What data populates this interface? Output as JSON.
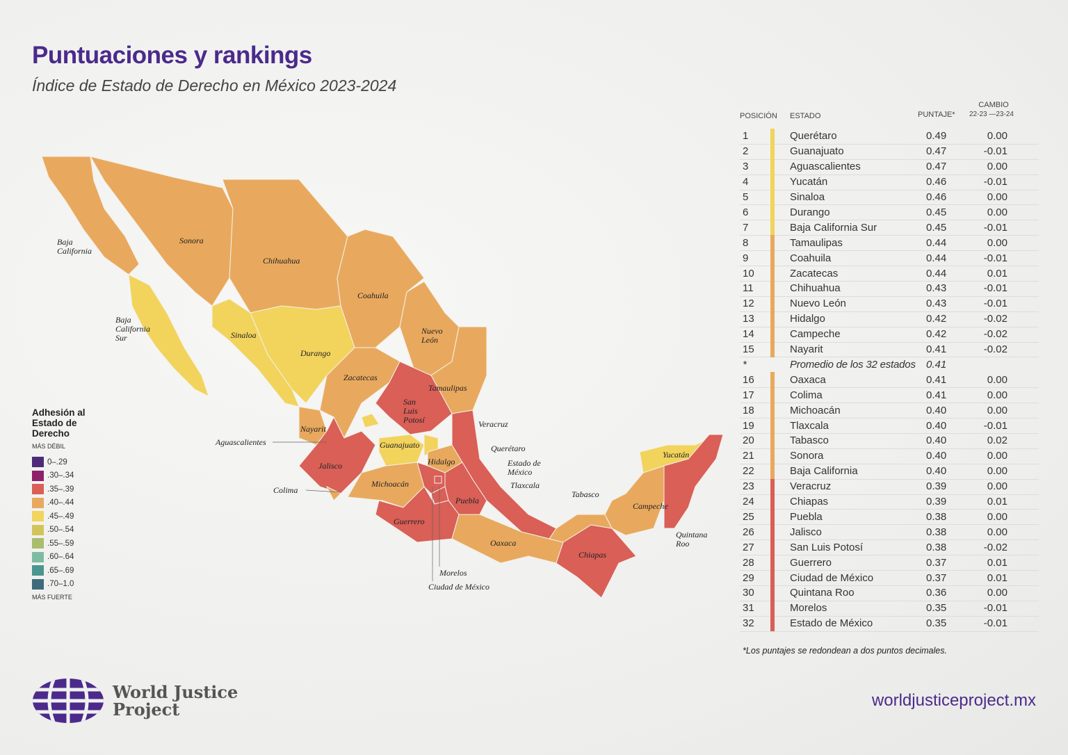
{
  "header": {
    "title": "Puntuaciones y rankings",
    "subtitle": "Índice de Estado de Derecho en México 2023-2024"
  },
  "legend": {
    "title": "Adhesión al Estado de Derecho",
    "weak": "MÁS DÉBIL",
    "strong": "MÁS FUERTE",
    "bins": [
      {
        "label": "0–.29",
        "color": "#4e2a78"
      },
      {
        "label": ".30–.34",
        "color": "#8e2168"
      },
      {
        "label": ".35–.39",
        "color": "#d95f57"
      },
      {
        "label": ".40–.44",
        "color": "#e8a95e"
      },
      {
        "label": ".45–.49",
        "color": "#f2d35c"
      },
      {
        "label": ".50–.54",
        "color": "#d3c45a"
      },
      {
        "label": ".55–.59",
        "color": "#a9bd6c"
      },
      {
        "label": ".60–.64",
        "color": "#7fbba2"
      },
      {
        "label": ".65–.69",
        "color": "#4b9690"
      },
      {
        "label": ".70–1.0",
        "color": "#3f6a7c"
      }
    ]
  },
  "table": {
    "h_pos": "POSICIÓN",
    "h_state": "ESTADO",
    "h_score": "PUNTAJE*",
    "h_change1": "CAMBIO",
    "h_change2": "22-23 —23-24",
    "rows": [
      {
        "pos": "1",
        "name": "Querétaro",
        "score": "0.49",
        "change": "0.00"
      },
      {
        "pos": "2",
        "name": "Guanajuato",
        "score": "0.47",
        "change": "-0.01"
      },
      {
        "pos": "3",
        "name": "Aguascalientes",
        "score": "0.47",
        "change": "0.00"
      },
      {
        "pos": "4",
        "name": "Yucatán",
        "score": "0.46",
        "change": "-0.01"
      },
      {
        "pos": "5",
        "name": "Sinaloa",
        "score": "0.46",
        "change": "0.00"
      },
      {
        "pos": "6",
        "name": "Durango",
        "score": "0.45",
        "change": "0.00"
      },
      {
        "pos": "7",
        "name": "Baja California Sur",
        "score": "0.45",
        "change": "-0.01"
      },
      {
        "pos": "8",
        "name": "Tamaulipas",
        "score": "0.44",
        "change": "0.00"
      },
      {
        "pos": "9",
        "name": "Coahuila",
        "score": "0.44",
        "change": "-0.01"
      },
      {
        "pos": "10",
        "name": "Zacatecas",
        "score": "0.44",
        "change": "0.01"
      },
      {
        "pos": "11",
        "name": "Chihuahua",
        "score": "0.43",
        "change": "-0.01"
      },
      {
        "pos": "12",
        "name": "Nuevo León",
        "score": "0.43",
        "change": "-0.01"
      },
      {
        "pos": "13",
        "name": "Hidalgo",
        "score": "0.42",
        "change": "-0.02"
      },
      {
        "pos": "14",
        "name": "Campeche",
        "score": "0.42",
        "change": "-0.02"
      },
      {
        "pos": "15",
        "name": "Nayarit",
        "score": "0.41",
        "change": "-0.02"
      },
      {
        "pos": "*",
        "name": "Promedio de los 32 estados",
        "score": "0.41",
        "change": "",
        "avg": true
      },
      {
        "pos": "16",
        "name": "Oaxaca",
        "score": "0.41",
        "change": "0.00"
      },
      {
        "pos": "17",
        "name": "Colima",
        "score": "0.41",
        "change": "0.00"
      },
      {
        "pos": "18",
        "name": "Michoacán",
        "score": "0.40",
        "change": "0.00"
      },
      {
        "pos": "19",
        "name": "Tlaxcala",
        "score": "0.40",
        "change": "-0.01"
      },
      {
        "pos": "20",
        "name": "Tabasco",
        "score": "0.40",
        "change": "0.02"
      },
      {
        "pos": "21",
        "name": "Sonora",
        "score": "0.40",
        "change": "0.00"
      },
      {
        "pos": "22",
        "name": "Baja California",
        "score": "0.40",
        "change": "0.00"
      },
      {
        "pos": "23",
        "name": "Veracruz",
        "score": "0.39",
        "change": "0.00"
      },
      {
        "pos": "24",
        "name": "Chiapas",
        "score": "0.39",
        "change": "0.01"
      },
      {
        "pos": "25",
        "name": "Puebla",
        "score": "0.38",
        "change": "0.00"
      },
      {
        "pos": "26",
        "name": "Jalisco",
        "score": "0.38",
        "change": "0.00"
      },
      {
        "pos": "27",
        "name": "San Luis Potosí",
        "score": "0.38",
        "change": "-0.02"
      },
      {
        "pos": "28",
        "name": "Guerrero",
        "score": "0.37",
        "change": "0.01"
      },
      {
        "pos": "29",
        "name": "Ciudad de México",
        "score": "0.37",
        "change": "0.01"
      },
      {
        "pos": "30",
        "name": "Quintana Roo",
        "score": "0.36",
        "change": "0.00"
      },
      {
        "pos": "31",
        "name": "Morelos",
        "score": "0.35",
        "change": "-0.01"
      },
      {
        "pos": "32",
        "name": "Estado de México",
        "score": "0.35",
        "change": "-0.01"
      }
    ]
  },
  "map_labels": [
    {
      "state": "Baja California",
      "lines": [
        "Baja",
        "California"
      ]
    },
    {
      "state": "Baja California Sur",
      "lines": [
        "Baja",
        "California",
        "Sur"
      ]
    },
    {
      "state": "Sonora",
      "lines": [
        "Sonora"
      ]
    },
    {
      "state": "Chihuahua",
      "lines": [
        "Chihuahua"
      ]
    },
    {
      "state": "Coahuila",
      "lines": [
        "Coahuila"
      ]
    },
    {
      "state": "Nuevo León",
      "lines": [
        "Nuevo",
        "León"
      ]
    },
    {
      "state": "Tamaulipas",
      "lines": [
        "Tamaulipas"
      ]
    },
    {
      "state": "Sinaloa",
      "lines": [
        "Sinaloa"
      ]
    },
    {
      "state": "Durango",
      "lines": [
        "Durango"
      ]
    },
    {
      "state": "Zacatecas",
      "lines": [
        "Zacatecas"
      ]
    },
    {
      "state": "San Luis Potosí",
      "lines": [
        "San",
        "Luis",
        "Potosí"
      ]
    },
    {
      "state": "Nayarit",
      "lines": [
        "Nayarit"
      ]
    },
    {
      "state": "Aguascalientes",
      "lines": [
        "Aguascalientes"
      ]
    },
    {
      "state": "Jalisco",
      "lines": [
        "Jalisco"
      ]
    },
    {
      "state": "Colima",
      "lines": [
        "Colima"
      ]
    },
    {
      "state": "Guanajuato",
      "lines": [
        "Guanajuato"
      ]
    },
    {
      "state": "Querétaro",
      "lines": [
        "Querétaro"
      ]
    },
    {
      "state": "Hidalgo",
      "lines": [
        "Hidalgo"
      ]
    },
    {
      "state": "Veracruz",
      "lines": [
        "Veracruz"
      ]
    },
    {
      "state": "Michoacán",
      "lines": [
        "Michoacán"
      ]
    },
    {
      "state": "Estado de México",
      "lines": [
        "Estado de",
        "México"
      ]
    },
    {
      "state": "Tlaxcala",
      "lines": [
        "Tlaxcala"
      ]
    },
    {
      "state": "Puebla",
      "lines": [
        "Puebla"
      ]
    },
    {
      "state": "Morelos",
      "lines": [
        "Morelos"
      ]
    },
    {
      "state": "Ciudad de México",
      "lines": [
        "Ciudad de México"
      ]
    },
    {
      "state": "Guerrero",
      "lines": [
        "Guerrero"
      ]
    },
    {
      "state": "Oaxaca",
      "lines": [
        "Oaxaca"
      ]
    },
    {
      "state": "Chiapas",
      "lines": [
        "Chiapas"
      ]
    },
    {
      "state": "Tabasco",
      "lines": [
        "Tabasco"
      ]
    },
    {
      "state": "Campeche",
      "lines": [
        "Campeche"
      ]
    },
    {
      "state": "Yucatán",
      "lines": [
        "Yucatán"
      ]
    },
    {
      "state": "Quintana Roo",
      "lines": [
        "Quintana",
        "Roo"
      ]
    }
  ],
  "footnote": "*Los puntajes se redondean a dos puntos decimales.",
  "logo": {
    "line1": "World Justice",
    "line2": "Project",
    "icon": "globe-logo-icon",
    "color": "#4b2a8c"
  },
  "url": "worldjusticeproject.mx"
}
